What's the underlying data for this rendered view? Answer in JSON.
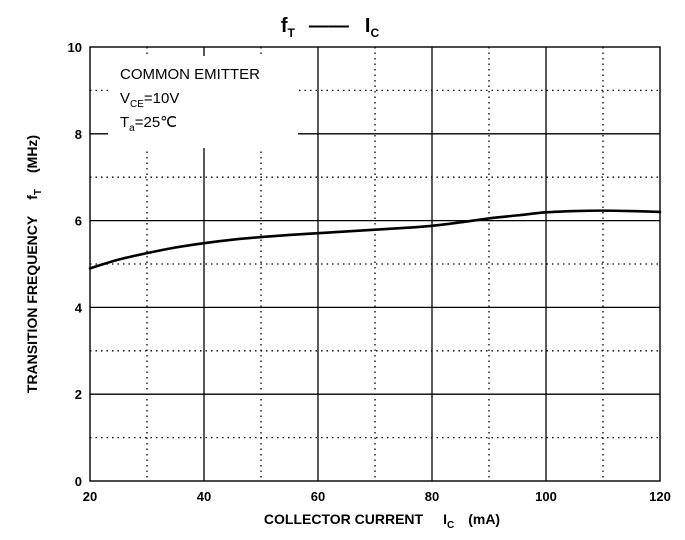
{
  "chart_data": {
    "type": "line",
    "title": {
      "main": "f",
      "main_sub": "T",
      "dash": "——",
      "second": "I",
      "second_sub": "C"
    },
    "xlabel": {
      "text": "COLLECTOR CURRENT",
      "symbol": "I",
      "symbol_sub": "C",
      "unit": "(mA)"
    },
    "ylabel": {
      "text": "TRANSITION FREQUENCY",
      "symbol": "f",
      "symbol_sub": "T",
      "unit": "(MHz)"
    },
    "xlim": [
      20,
      120
    ],
    "ylim": [
      0,
      10
    ],
    "x_ticks": [
      20,
      40,
      60,
      80,
      100,
      120
    ],
    "y_ticks": [
      0,
      2,
      4,
      6,
      8,
      10
    ],
    "x_ticks_text": [
      "20",
      "40",
      "60",
      "80",
      "100",
      "120"
    ],
    "y_ticks_text": [
      "0",
      "2",
      "4",
      "6",
      "8",
      "10"
    ],
    "grid": true,
    "annotation": {
      "line1": "COMMON EMITTER",
      "line2_main": "V",
      "line2_sub": "CE",
      "line2_rest": "=10V",
      "line3_main": "T",
      "line3_sub": "a",
      "line3_rest": "=25℃"
    },
    "series": [
      {
        "x": [
          20,
          25,
          30,
          35,
          40,
          45,
          50,
          55,
          60,
          65,
          70,
          75,
          80,
          85,
          90,
          95,
          100,
          105,
          110,
          115,
          120
        ],
        "y": [
          4.9,
          5.1,
          5.25,
          5.38,
          5.48,
          5.56,
          5.62,
          5.67,
          5.71,
          5.75,
          5.79,
          5.83,
          5.88,
          5.96,
          6.05,
          6.12,
          6.19,
          6.22,
          6.23,
          6.22,
          6.2
        ]
      }
    ]
  }
}
